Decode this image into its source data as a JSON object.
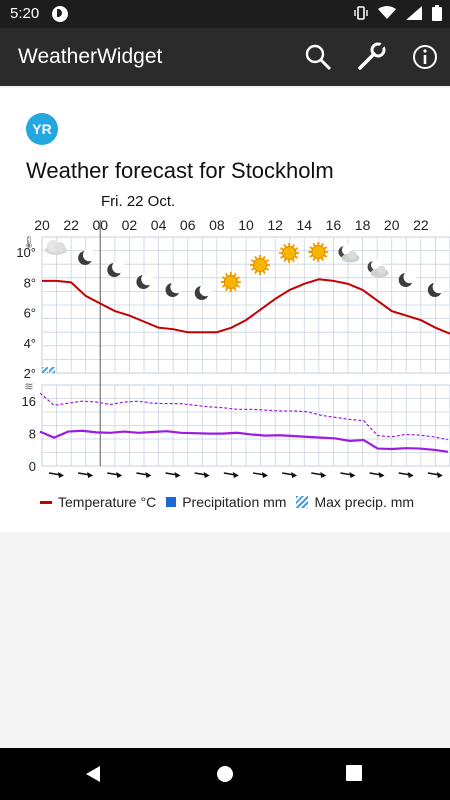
{
  "status_bar": {
    "time": "5:20"
  },
  "app_bar": {
    "title": "WeatherWidget",
    "actions": [
      {
        "name": "search-icon"
      },
      {
        "name": "wrench-icon"
      },
      {
        "name": "info-icon"
      }
    ]
  },
  "logo": {
    "text": "YR",
    "color": "#22a7e1"
  },
  "heading": "Weather forecast for Stockholm",
  "date_label": "Fri. 22 Oct.",
  "chart_data": {
    "type": "line",
    "x_tick_labels": [
      "20",
      "22",
      "00",
      "02",
      "04",
      "06",
      "08",
      "10",
      "12",
      "14",
      "16",
      "18",
      "20",
      "22"
    ],
    "temperature": {
      "y_tick_labels": [
        "10°",
        "8°",
        "6°",
        "4°",
        "2°"
      ],
      "ylim": [
        2,
        11
      ],
      "color": "#c40000",
      "values": [
        8.1,
        8.1,
        8.0,
        7.1,
        6.6,
        6.1,
        5.8,
        5.4,
        5.0,
        4.9,
        4.7,
        4.7,
        4.7,
        5.0,
        5.5,
        6.2,
        6.9,
        7.5,
        7.9,
        8.2,
        8.1,
        7.9,
        7.5,
        6.8,
        6.1,
        5.8,
        5.5,
        5.0,
        4.6
      ],
      "icons": [
        "cloud-icon",
        "moon-icon",
        "moon-icon",
        "moon-icon",
        "moon-icon",
        "moon-icon",
        "sun-icon",
        "sun-icon",
        "sun-icon",
        "sun-icon",
        "moon-cloud-icon",
        "moon-cloud-icon",
        "moon-icon",
        "moon-icon"
      ]
    },
    "wind": {
      "y_tick_labels": [
        "16",
        "8",
        "0"
      ],
      "ylim": [
        0,
        20
      ],
      "gust_color": "#9b1be0",
      "speed_color": "#9b1be0",
      "speed": [
        8.5,
        7.0,
        8.5,
        8.7,
        8.3,
        8.2,
        8.5,
        8.2,
        8.4,
        8.6,
        8.2,
        8.1,
        8.0,
        8.0,
        8.2,
        7.8,
        7.5,
        7.6,
        7.4,
        7.2,
        7.0,
        6.8,
        6.2,
        6.4,
        4.3,
        4.2,
        4.4,
        4.3,
        4.0,
        3.5
      ],
      "gust": [
        18.0,
        15.0,
        15.5,
        16.0,
        15.8,
        15.2,
        15.8,
        16.0,
        15.5,
        15.4,
        15.4,
        15.0,
        14.6,
        14.4,
        14.0,
        14.0,
        13.8,
        13.6,
        13.6,
        13.4,
        12.5,
        12.0,
        11.5,
        11.2,
        7.5,
        7.2,
        7.8,
        7.6,
        7.2,
        6.5
      ],
      "direction_arrows": 14
    },
    "legend": [
      {
        "label": "Temperature °C",
        "type": "line",
        "color": "#c40000"
      },
      {
        "label": "Precipitation mm",
        "type": "box",
        "color": "#1b67d6"
      },
      {
        "label": "Max precip. mm",
        "type": "hatch",
        "color": "#3fa0e8"
      }
    ],
    "precipitation": {
      "max_values_hatched": [
        0.2,
        0.2
      ]
    }
  },
  "nav_bar": {
    "buttons": [
      "back-icon",
      "home-icon",
      "recents-icon"
    ]
  }
}
